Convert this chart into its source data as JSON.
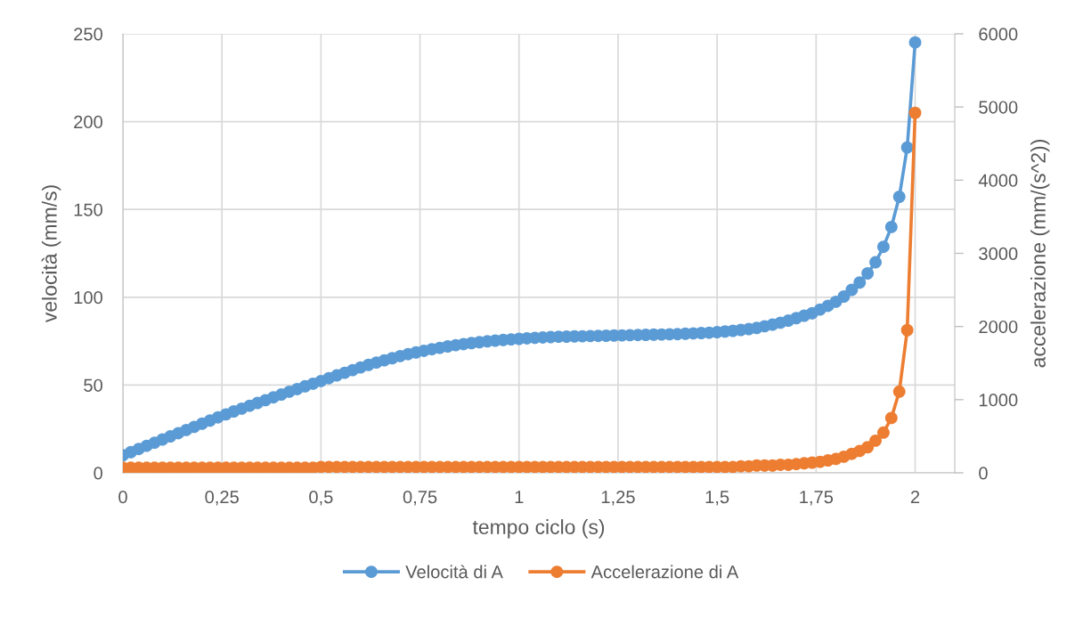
{
  "chart_data": {
    "type": "line",
    "xlabel": "tempo ciclo (s)",
    "ylabel": "velocità (mm/s)",
    "y2label": "accelerazione (mm/(s^2))",
    "x": [
      0,
      0.02,
      0.04,
      0.06,
      0.08,
      0.1,
      0.12,
      0.14,
      0.16,
      0.18,
      0.2,
      0.22,
      0.24,
      0.26,
      0.28,
      0.3,
      0.32,
      0.34,
      0.36,
      0.38,
      0.4,
      0.42,
      0.44,
      0.46,
      0.48,
      0.5,
      0.52,
      0.54,
      0.56,
      0.58,
      0.6,
      0.62,
      0.64,
      0.66,
      0.68,
      0.7,
      0.72,
      0.74,
      0.76,
      0.78,
      0.8,
      0.82,
      0.84,
      0.86,
      0.88,
      0.9,
      0.92,
      0.94,
      0.96,
      0.98,
      1,
      1.02,
      1.04,
      1.06,
      1.08,
      1.1,
      1.12,
      1.14,
      1.16,
      1.18,
      1.2,
      1.22,
      1.24,
      1.26,
      1.28,
      1.3,
      1.32,
      1.34,
      1.36,
      1.38,
      1.4,
      1.42,
      1.44,
      1.46,
      1.48,
      1.5,
      1.52,
      1.54,
      1.56,
      1.58,
      1.6,
      1.62,
      1.64,
      1.66,
      1.68,
      1.7,
      1.72,
      1.74,
      1.76,
      1.78,
      1.8,
      1.82,
      1.84,
      1.86,
      1.88,
      1.9,
      1.92,
      1.94,
      1.96,
      1.98,
      2
    ],
    "series": [
      {
        "name": "Velocità di A",
        "color": "#5b9bd5",
        "values": [
          10.0,
          11.8,
          13.6,
          15.4,
          17.2,
          19.0,
          20.8,
          22.6,
          24.4,
          26.2,
          28.0,
          29.8,
          31.6,
          33.3,
          35.0,
          36.6,
          38.2,
          39.8,
          41.4,
          43.0,
          44.6,
          46.2,
          47.7,
          49.3,
          50.8,
          52.3,
          53.9,
          55.5,
          57.0,
          58.5,
          60.0,
          61.5,
          62.8,
          64.1,
          65.3,
          66.5,
          67.6,
          68.6,
          69.5,
          70.4,
          71.2,
          72.0,
          72.7,
          73.3,
          73.9,
          74.4,
          74.9,
          75.3,
          75.7,
          76.0,
          76.3,
          76.6,
          76.9,
          77.1,
          77.3,
          77.5,
          77.6,
          77.7,
          77.8,
          77.9,
          78.0,
          78.1,
          78.2,
          78.3,
          78.4,
          78.5,
          78.6,
          78.7,
          78.8,
          78.9,
          79.0,
          79.2,
          79.4,
          79.6,
          79.8,
          80.1,
          80.5,
          80.9,
          81.4,
          81.9,
          82.5,
          83.5,
          84.4,
          85.5,
          86.7,
          88.1,
          89.5,
          90.9,
          93.0,
          95.1,
          97.4,
          100.4,
          104.2,
          108.4,
          113.6,
          119.9,
          128.7,
          140.0,
          157.2,
          185.3,
          245.1
        ]
      },
      {
        "name": "Accelerazione di A",
        "color": "#ed7d31",
        "axis": "y2",
        "values": [
          70,
          70,
          70,
          70,
          70,
          70,
          70,
          70,
          70,
          70,
          70,
          70,
          70,
          70,
          70,
          70,
          70,
          70,
          70,
          70,
          70,
          70,
          70,
          70,
          70,
          80,
          80,
          80,
          80,
          80,
          80,
          80,
          80,
          80,
          80,
          80,
          80,
          80,
          80,
          80,
          80,
          80,
          80,
          80,
          80,
          80,
          80,
          80,
          80,
          80,
          80,
          80,
          80,
          80,
          80,
          80,
          80,
          80,
          80,
          80,
          80,
          80,
          80,
          80,
          80,
          80,
          80,
          80,
          80,
          80,
          80,
          80,
          80,
          80,
          80,
          80,
          80,
          80,
          90,
          90,
          100,
          100,
          100,
          110,
          110,
          120,
          130,
          140,
          150,
          170,
          190,
          220,
          260,
          300,
          350,
          440,
          550,
          750,
          1110,
          1950,
          4920
        ]
      }
    ],
    "xlim": [
      0,
      2.1
    ],
    "xticks": [
      0,
      {
        "value": 0.25,
        "label": "0,25"
      },
      {
        "value": 0.5,
        "label": "0,5"
      },
      {
        "value": 0.75,
        "label": "0,75"
      },
      1,
      {
        "value": 1.25,
        "label": "1,25"
      },
      {
        "value": 1.5,
        "label": "1,5"
      },
      {
        "value": 1.75,
        "label": "1,75"
      },
      2
    ],
    "ylim": [
      0,
      250
    ],
    "yticks": [
      0,
      50,
      100,
      150,
      200,
      250
    ],
    "y2lim": [
      0,
      6000
    ],
    "y2ticks": [
      0,
      1000,
      2000,
      3000,
      4000,
      5000,
      6000
    ],
    "grid": true,
    "legend": "bottom",
    "marker": "circle",
    "line_style": "solid"
  }
}
